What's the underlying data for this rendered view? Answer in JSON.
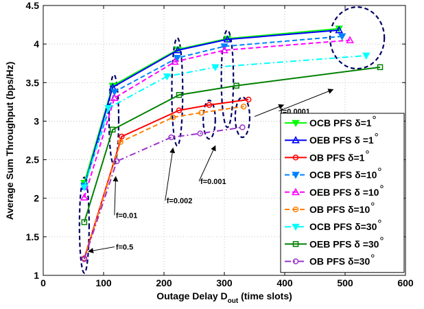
{
  "chart_data": {
    "type": "line",
    "title": "",
    "xlabel": "Outage Delay D",
    "xlabel_sub": "out",
    "xlabel_suffix": " (time slots)",
    "ylabel": "Average Sum Throughput (bps/Hz)",
    "xlim": [
      0,
      600
    ],
    "ylim": [
      1,
      4.5
    ],
    "xticks": [
      0,
      100,
      200,
      300,
      400,
      500,
      600
    ],
    "yticks": [
      1,
      1.5,
      2,
      2.5,
      3,
      3.5,
      4,
      4.5
    ],
    "ytick_labels": [
      "1",
      "1.5",
      "2",
      "2.5",
      "3",
      "3.5",
      "4",
      "4.5"
    ],
    "grid": true,
    "legend_position": "bottom-right",
    "series": [
      {
        "name": "OCB PFS δ=1",
        "color": "#00ff00",
        "dash": "solid",
        "marker": "triangle-down",
        "x": [
          68,
          115,
          223,
          305,
          490
        ],
        "y": [
          2.2,
          3.46,
          3.93,
          4.07,
          4.2
        ]
      },
      {
        "name": "OEB PFS δ =1",
        "color": "#0000ff",
        "dash": "solid",
        "marker": "triangle-up",
        "x": [
          68,
          115,
          223,
          305,
          490
        ],
        "y": [
          2.15,
          3.44,
          3.92,
          4.06,
          4.18
        ]
      },
      {
        "name": "OB PFS δ=1",
        "color": "#ff0000",
        "dash": "solid",
        "marker": "circle",
        "x": [
          68,
          130,
          225,
          275,
          340
        ],
        "y": [
          1.22,
          2.8,
          3.14,
          3.21,
          3.28
        ]
      },
      {
        "name": "OCB PFS δ=10",
        "color": "#0080ff",
        "dash": "dashed",
        "marker": "triangle-down",
        "x": [
          68,
          118,
          222,
          300,
          495
        ],
        "y": [
          2.16,
          3.38,
          3.82,
          3.97,
          4.1
        ]
      },
      {
        "name": "OEB PFS δ =10",
        "color": "#ff00ff",
        "dash": "dashed",
        "marker": "triangle-up",
        "x": [
          68,
          118,
          218,
          300,
          508
        ],
        "y": [
          2.01,
          3.3,
          3.77,
          3.92,
          4.05
        ]
      },
      {
        "name": "OB PFS δ=10",
        "color": "#ff8000",
        "dash": "dashed",
        "marker": "circle",
        "x": [
          68,
          128,
          215,
          262,
          332
        ],
        "y": [
          1.21,
          2.73,
          3.05,
          3.11,
          3.19
        ]
      },
      {
        "name": "OCB PFS δ=30",
        "color": "#00ffff",
        "dash": "dashdot",
        "marker": "triangle-down",
        "x": [
          68,
          108,
          205,
          285,
          535
        ],
        "y": [
          2.14,
          3.17,
          3.58,
          3.7,
          3.85
        ]
      },
      {
        "name": "OEB PFS δ =30",
        "color": "#008000",
        "dash": "solid",
        "marker": "square",
        "x": [
          68,
          115,
          225,
          320,
          558
        ],
        "y": [
          1.69,
          2.89,
          3.34,
          3.46,
          3.7
        ]
      },
      {
        "name": "OB PFS δ=30",
        "color": "#9933cc",
        "dash": "dashdot",
        "marker": "circle",
        "x": [
          68,
          122,
          212,
          260,
          330
        ],
        "y": [
          1.21,
          2.48,
          2.79,
          2.84,
          2.92
        ]
      }
    ],
    "annotations": [
      {
        "text": "f=0.5",
        "x_text": 118,
        "y_text": 1.37,
        "x_arrow": 75,
        "y_arrow": 1.31
      },
      {
        "text": "f=0.01",
        "x_text": 118,
        "y_text": 1.78,
        "x_arrow": 120,
        "y_arrow": 2.28
      },
      {
        "text": "f=0.002",
        "x_text": 202,
        "y_text": 1.97,
        "x_arrow": 215,
        "y_arrow": 2.65
      },
      {
        "text": "f=0.001",
        "x_text": 258,
        "y_text": 2.22,
        "x_arrow": 285,
        "y_arrow": 2.68
      },
      {
        "text": "f=0.0001",
        "x_text": 390,
        "y_text": 3.13,
        "x_arrow": 480,
        "y_arrow": 3.41
      },
      {
        "text": "",
        "x_text": 350,
        "y_text": 3.06,
        "x_arrow": 398,
        "y_arrow": 3.21
      }
    ],
    "ellipses": [
      {
        "cx": 68,
        "cy": 1.65,
        "rx": 8,
        "ry": 0.62
      },
      {
        "cx": 117,
        "cy": 3.02,
        "rx": 8,
        "ry": 0.58
      },
      {
        "cx": 222,
        "cy": 3.38,
        "rx": 9,
        "ry": 0.7
      },
      {
        "cx": 305,
        "cy": 3.55,
        "rx": 10,
        "ry": 0.63
      },
      {
        "cx": 275,
        "cy": 3.02,
        "rx": 10,
        "ry": 0.25
      },
      {
        "cx": 330,
        "cy": 3.05,
        "rx": 12,
        "ry": 0.26
      },
      {
        "cx": 520,
        "cy": 4.08,
        "rx": 45,
        "ry": 0.4
      }
    ]
  }
}
